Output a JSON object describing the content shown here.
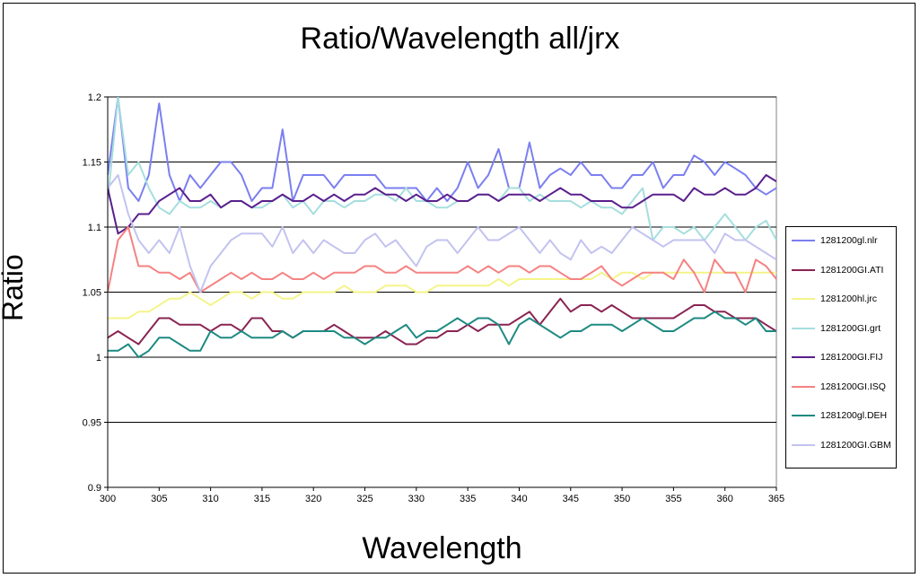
{
  "chart_data": {
    "type": "line",
    "title": "Ratio/Wavelength all/jrx",
    "xlabel": "Wavelength",
    "ylabel": "Ratio",
    "xlim": [
      300,
      365
    ],
    "ylim": [
      0.9,
      1.2
    ],
    "xticks": [
      300,
      305,
      310,
      315,
      320,
      325,
      330,
      335,
      340,
      345,
      350,
      355,
      360,
      365
    ],
    "yticks": [
      0.9,
      0.95,
      1,
      1.05,
      1.1,
      1.15,
      1.2
    ],
    "ytick_labels": [
      "0.9",
      "0.95",
      "1",
      "1.05",
      "1.1",
      "1.15",
      "1.2"
    ],
    "grid": "horizontal major gridlines",
    "legend_position": "right",
    "x": [
      300,
      301,
      302,
      303,
      304,
      305,
      306,
      307,
      308,
      309,
      310,
      311,
      312,
      313,
      314,
      315,
      316,
      317,
      318,
      319,
      320,
      321,
      322,
      323,
      324,
      325,
      326,
      327,
      328,
      329,
      330,
      331,
      332,
      333,
      334,
      335,
      336,
      337,
      338,
      339,
      340,
      341,
      342,
      343,
      344,
      345,
      346,
      347,
      348,
      349,
      350,
      351,
      352,
      353,
      354,
      355,
      356,
      357,
      358,
      359,
      360,
      361,
      362,
      363,
      364,
      365
    ],
    "series": [
      {
        "name": "1281200gl.nlr",
        "color": "#7b7ff0",
        "values": [
          1.14,
          1.2,
          1.13,
          1.12,
          1.14,
          1.195,
          1.14,
          1.12,
          1.14,
          1.13,
          1.14,
          1.15,
          1.15,
          1.14,
          1.12,
          1.13,
          1.13,
          1.175,
          1.12,
          1.14,
          1.14,
          1.14,
          1.13,
          1.14,
          1.14,
          1.14,
          1.14,
          1.13,
          1.13,
          1.13,
          1.13,
          1.12,
          1.13,
          1.12,
          1.13,
          1.15,
          1.13,
          1.14,
          1.16,
          1.13,
          1.13,
          1.165,
          1.13,
          1.14,
          1.145,
          1.14,
          1.15,
          1.14,
          1.14,
          1.13,
          1.13,
          1.14,
          1.14,
          1.15,
          1.13,
          1.14,
          1.14,
          1.155,
          1.15,
          1.14,
          1.15,
          1.145,
          1.14,
          1.13,
          1.125,
          1.13
        ]
      },
      {
        "name": "1281200GI.ATI",
        "color": "#8a2452",
        "values": [
          1.015,
          1.02,
          1.015,
          1.01,
          1.02,
          1.03,
          1.03,
          1.025,
          1.025,
          1.025,
          1.02,
          1.025,
          1.025,
          1.02,
          1.03,
          1.03,
          1.02,
          1.02,
          1.015,
          1.02,
          1.02,
          1.02,
          1.025,
          1.02,
          1.015,
          1.015,
          1.015,
          1.02,
          1.015,
          1.01,
          1.01,
          1.015,
          1.015,
          1.02,
          1.02,
          1.025,
          1.02,
          1.025,
          1.025,
          1.025,
          1.03,
          1.035,
          1.025,
          1.035,
          1.045,
          1.035,
          1.04,
          1.04,
          1.035,
          1.04,
          1.035,
          1.03,
          1.03,
          1.03,
          1.03,
          1.03,
          1.035,
          1.04,
          1.04,
          1.035,
          1.035,
          1.03,
          1.03,
          1.03,
          1.025,
          1.02
        ]
      },
      {
        "name": "1281200hl.jrc",
        "color": "#f4f48a",
        "values": [
          1.03,
          1.03,
          1.03,
          1.035,
          1.035,
          1.04,
          1.045,
          1.045,
          1.05,
          1.045,
          1.04,
          1.045,
          1.05,
          1.05,
          1.045,
          1.05,
          1.05,
          1.045,
          1.045,
          1.05,
          1.05,
          1.05,
          1.05,
          1.055,
          1.05,
          1.05,
          1.05,
          1.055,
          1.055,
          1.055,
          1.05,
          1.05,
          1.055,
          1.055,
          1.055,
          1.055,
          1.055,
          1.055,
          1.06,
          1.055,
          1.06,
          1.06,
          1.06,
          1.06,
          1.06,
          1.06,
          1.06,
          1.06,
          1.065,
          1.06,
          1.065,
          1.065,
          1.06,
          1.065,
          1.065,
          1.065,
          1.065,
          1.065,
          1.065,
          1.065,
          1.065,
          1.065,
          1.065,
          1.065,
          1.065,
          1.065
        ]
      },
      {
        "name": "1281200GI.grt",
        "color": "#a6dede",
        "values": [
          1.12,
          1.2,
          1.14,
          1.15,
          1.13,
          1.115,
          1.11,
          1.12,
          1.115,
          1.115,
          1.12,
          1.115,
          1.12,
          1.12,
          1.115,
          1.115,
          1.12,
          1.125,
          1.115,
          1.12,
          1.11,
          1.12,
          1.12,
          1.115,
          1.12,
          1.12,
          1.125,
          1.125,
          1.12,
          1.13,
          1.12,
          1.12,
          1.115,
          1.115,
          1.12,
          1.12,
          1.125,
          1.125,
          1.12,
          1.13,
          1.13,
          1.12,
          1.125,
          1.12,
          1.12,
          1.12,
          1.115,
          1.12,
          1.115,
          1.115,
          1.11,
          1.12,
          1.13,
          1.09,
          1.1,
          1.1,
          1.095,
          1.1,
          1.09,
          1.1,
          1.11,
          1.1,
          1.09,
          1.1,
          1.105,
          1.09
        ]
      },
      {
        "name": "1281200GI.FIJ",
        "color": "#5a1f8c",
        "values": [
          1.13,
          1.095,
          1.1,
          1.11,
          1.11,
          1.12,
          1.125,
          1.13,
          1.12,
          1.12,
          1.125,
          1.115,
          1.12,
          1.12,
          1.115,
          1.12,
          1.12,
          1.125,
          1.12,
          1.12,
          1.125,
          1.12,
          1.125,
          1.12,
          1.125,
          1.125,
          1.13,
          1.125,
          1.125,
          1.12,
          1.125,
          1.12,
          1.12,
          1.125,
          1.12,
          1.12,
          1.125,
          1.125,
          1.12,
          1.125,
          1.125,
          1.125,
          1.12,
          1.125,
          1.13,
          1.125,
          1.125,
          1.12,
          1.12,
          1.12,
          1.115,
          1.115,
          1.12,
          1.125,
          1.125,
          1.125,
          1.12,
          1.13,
          1.125,
          1.125,
          1.13,
          1.125,
          1.125,
          1.13,
          1.14,
          1.135
        ]
      },
      {
        "name": "1281200GI.ISQ",
        "color": "#f58282",
        "values": [
          1.05,
          1.09,
          1.1,
          1.07,
          1.07,
          1.065,
          1.065,
          1.06,
          1.065,
          1.05,
          1.055,
          1.06,
          1.065,
          1.06,
          1.065,
          1.06,
          1.06,
          1.065,
          1.06,
          1.06,
          1.065,
          1.06,
          1.065,
          1.065,
          1.065,
          1.07,
          1.07,
          1.065,
          1.065,
          1.07,
          1.065,
          1.065,
          1.065,
          1.065,
          1.065,
          1.07,
          1.065,
          1.07,
          1.065,
          1.07,
          1.07,
          1.065,
          1.07,
          1.07,
          1.065,
          1.06,
          1.06,
          1.065,
          1.07,
          1.06,
          1.055,
          1.06,
          1.065,
          1.065,
          1.065,
          1.06,
          1.075,
          1.065,
          1.05,
          1.075,
          1.065,
          1.065,
          1.05,
          1.075,
          1.07,
          1.06
        ]
      },
      {
        "name": "1281200gl.DEH",
        "color": "#1d8a82",
        "values": [
          1.005,
          1.005,
          1.01,
          1.0,
          1.005,
          1.015,
          1.015,
          1.01,
          1.005,
          1.005,
          1.02,
          1.015,
          1.015,
          1.02,
          1.015,
          1.015,
          1.015,
          1.02,
          1.015,
          1.02,
          1.02,
          1.02,
          1.02,
          1.015,
          1.015,
          1.01,
          1.015,
          1.015,
          1.02,
          1.025,
          1.015,
          1.02,
          1.02,
          1.025,
          1.03,
          1.025,
          1.03,
          1.03,
          1.025,
          1.01,
          1.025,
          1.03,
          1.025,
          1.02,
          1.015,
          1.02,
          1.02,
          1.025,
          1.025,
          1.025,
          1.02,
          1.025,
          1.03,
          1.025,
          1.02,
          1.02,
          1.025,
          1.03,
          1.03,
          1.035,
          1.03,
          1.03,
          1.025,
          1.03,
          1.02,
          1.02
        ]
      },
      {
        "name": "1281200GI.GBM",
        "color": "#c3c3f0",
        "values": [
          1.13,
          1.14,
          1.11,
          1.09,
          1.08,
          1.09,
          1.08,
          1.1,
          1.07,
          1.05,
          1.07,
          1.08,
          1.09,
          1.095,
          1.095,
          1.095,
          1.085,
          1.1,
          1.08,
          1.09,
          1.08,
          1.09,
          1.085,
          1.08,
          1.08,
          1.09,
          1.095,
          1.085,
          1.09,
          1.08,
          1.07,
          1.085,
          1.09,
          1.09,
          1.08,
          1.09,
          1.1,
          1.09,
          1.09,
          1.095,
          1.1,
          1.09,
          1.08,
          1.09,
          1.08,
          1.075,
          1.09,
          1.08,
          1.085,
          1.08,
          1.09,
          1.1,
          1.095,
          1.09,
          1.085,
          1.09,
          1.09,
          1.09,
          1.09,
          1.08,
          1.095,
          1.09,
          1.09,
          1.085,
          1.08,
          1.075
        ]
      }
    ]
  }
}
